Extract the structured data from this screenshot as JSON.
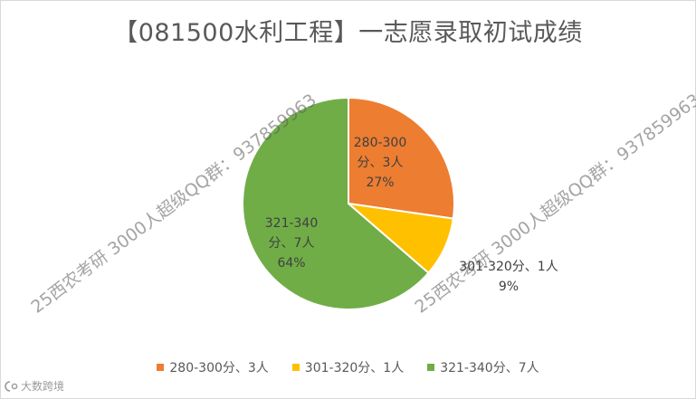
{
  "chart_data": {
    "type": "pie",
    "title": "【081500水利工程】一志愿录取初试成绩",
    "slices": [
      {
        "label": "280-300分、3人",
        "value": 3,
        "percent": "27%",
        "color": "#ED7D31",
        "data_label_lines": [
          "280-300",
          "分、3人",
          "27%"
        ]
      },
      {
        "label": "301-320分、1人",
        "value": 1,
        "percent": "9%",
        "color": "#FFC000",
        "data_label_lines": [
          "301-320分、1人",
          "9%"
        ]
      },
      {
        "label": "321-340分、7人",
        "value": 7,
        "percent": "64%",
        "color": "#70AD47",
        "data_label_lines": [
          "321-340",
          "分、7人",
          "64%"
        ]
      }
    ],
    "legend_position": "bottom"
  },
  "watermark": {
    "text": "25西农考研 3000人超级QQ群：937859963"
  },
  "brand": {
    "icon": "brand-logo-icon",
    "text": "大数跨境"
  }
}
